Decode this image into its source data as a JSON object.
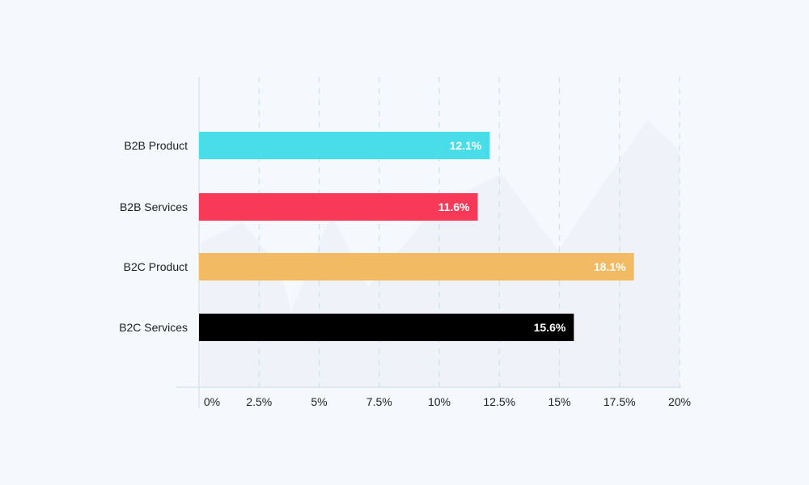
{
  "chart_data": {
    "type": "bar",
    "orientation": "horizontal",
    "categories": [
      "B2B Product",
      "B2B Services",
      "B2C Product",
      "B2C Services"
    ],
    "values": [
      12.1,
      11.6,
      18.1,
      15.6
    ],
    "value_labels": [
      "12.1%",
      "11.6%",
      "18.1%",
      "15.6%"
    ],
    "colors": [
      "#48dde8",
      "#f83a58",
      "#f2bb63",
      "#000000"
    ],
    "xlim": [
      0,
      20
    ],
    "ticks": [
      0,
      2.5,
      5,
      7.5,
      10,
      12.5,
      15,
      17.5,
      20
    ],
    "tick_labels": [
      "0%",
      "2.5%",
      "5%",
      "7.5%",
      "10%",
      "12.5%",
      "15%",
      "17.5%",
      "20%"
    ],
    "grid": "vertical dashed",
    "title": "",
    "xlabel": "",
    "ylabel": ""
  }
}
